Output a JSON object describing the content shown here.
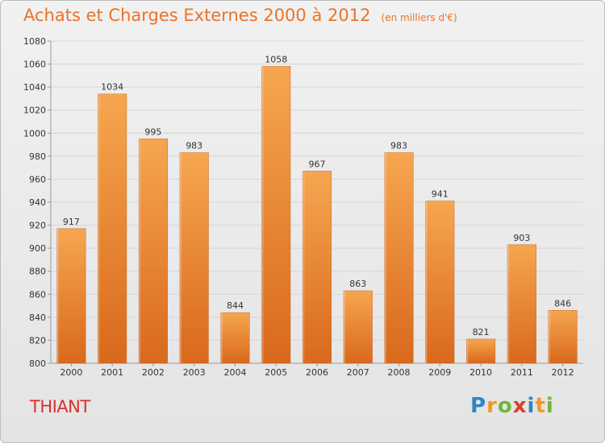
{
  "header": {
    "title": "Achats et Charges Externes 2000 à 2012",
    "subtitle": "(en milliers d'€)"
  },
  "footer": {
    "commune": "THIANT",
    "logo_text": "Proxiti"
  },
  "colors": {
    "title": "#e8742a",
    "commune": "#d8302c",
    "bar_top": "#f6a650",
    "bar_bottom": "#d9691c"
  },
  "chart_data": {
    "type": "bar",
    "title": "Achats et Charges Externes 2000 à 2012",
    "categories": [
      "2000",
      "2001",
      "2002",
      "2003",
      "2004",
      "2005",
      "2006",
      "2007",
      "2008",
      "2009",
      "2010",
      "2011",
      "2012"
    ],
    "values": [
      917,
      1034,
      995,
      983,
      844,
      1058,
      967,
      863,
      983,
      941,
      821,
      903,
      846
    ],
    "ylim": [
      800,
      1080
    ],
    "yticks": [
      800,
      820,
      840,
      860,
      880,
      900,
      920,
      940,
      960,
      980,
      1000,
      1020,
      1040,
      1060,
      1080
    ],
    "grid": true,
    "xlabel": "",
    "ylabel": ""
  }
}
